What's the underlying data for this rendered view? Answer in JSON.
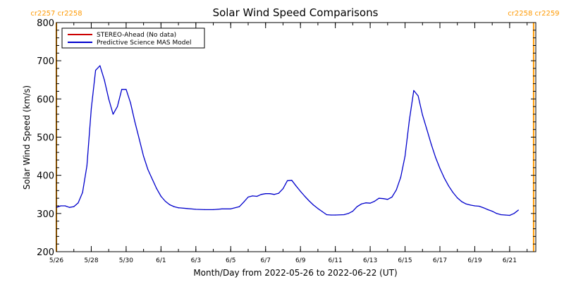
{
  "chart_data": {
    "type": "line",
    "title": "Solar Wind Speed Comparisons",
    "xlabel": "Month/Day from 2022-05-26 to 2022-06-22 (UT)",
    "ylabel": "Solar Wind Speed (km/s)",
    "ylim": [
      200,
      800
    ],
    "xlim": [
      "2022-05-26",
      "2022-06-22T12:00"
    ],
    "y_ticks": [
      200,
      300,
      400,
      500,
      600,
      700,
      800
    ],
    "x_tick_dates": [
      "2022-05-26",
      "2022-05-28",
      "2022-05-30",
      "2022-06-01",
      "2022-06-03",
      "2022-06-05",
      "2022-06-07",
      "2022-06-09",
      "2022-06-11",
      "2022-06-13",
      "2022-06-15",
      "2022-06-17",
      "2022-06-19",
      "2022-06-21"
    ],
    "x_tick_labels": [
      "5/26",
      "5/28",
      "5/30",
      "6/1",
      "6/3",
      "6/5",
      "6/7",
      "6/9",
      "6/11",
      "6/13",
      "6/15",
      "6/17",
      "6/19",
      "6/21"
    ],
    "rotation_markers": [
      {
        "date": "2022-05-26",
        "label": "cr2257 cr2258",
        "color": "#ff9900"
      },
      {
        "date": "2022-06-22T09:00",
        "label": "cr2258 cr2259",
        "color": "#ff9900"
      }
    ],
    "legend_position": "top-left",
    "series": [
      {
        "name": "STEREO-Ahead (No data)",
        "color": "#cc0000",
        "points": []
      },
      {
        "name": "Predictive Science MAS Model",
        "color": "#0000cc",
        "points": [
          [
            "2022-05-26T00:00",
            316
          ],
          [
            "2022-05-26T06:00",
            320
          ],
          [
            "2022-05-26T12:00",
            320
          ],
          [
            "2022-05-26T18:00",
            316
          ],
          [
            "2022-05-27T00:00",
            318
          ],
          [
            "2022-05-27T06:00",
            328
          ],
          [
            "2022-05-27T12:00",
            355
          ],
          [
            "2022-05-27T18:00",
            425
          ],
          [
            "2022-05-28T00:00",
            575
          ],
          [
            "2022-05-28T06:00",
            675
          ],
          [
            "2022-05-28T12:00",
            687
          ],
          [
            "2022-05-28T18:00",
            650
          ],
          [
            "2022-05-29T00:00",
            600
          ],
          [
            "2022-05-29T06:00",
            560
          ],
          [
            "2022-05-29T12:00",
            580
          ],
          [
            "2022-05-29T18:00",
            625
          ],
          [
            "2022-05-30T00:00",
            625
          ],
          [
            "2022-05-30T06:00",
            590
          ],
          [
            "2022-05-30T12:00",
            540
          ],
          [
            "2022-05-30T18:00",
            495
          ],
          [
            "2022-05-31T00:00",
            450
          ],
          [
            "2022-05-31T06:00",
            415
          ],
          [
            "2022-05-31T12:00",
            390
          ],
          [
            "2022-05-31T18:00",
            365
          ],
          [
            "2022-06-01T00:00",
            345
          ],
          [
            "2022-06-01T06:00",
            332
          ],
          [
            "2022-06-01T12:00",
            323
          ],
          [
            "2022-06-01T18:00",
            318
          ],
          [
            "2022-06-02T00:00",
            315
          ],
          [
            "2022-06-02T12:00",
            313
          ],
          [
            "2022-06-03T00:00",
            311
          ],
          [
            "2022-06-03T12:00",
            310
          ],
          [
            "2022-06-04T00:00",
            310
          ],
          [
            "2022-06-04T12:00",
            312
          ],
          [
            "2022-06-05T00:00",
            312
          ],
          [
            "2022-06-05T12:00",
            318
          ],
          [
            "2022-06-05T18:00",
            330
          ],
          [
            "2022-06-06T00:00",
            343
          ],
          [
            "2022-06-06T06:00",
            346
          ],
          [
            "2022-06-06T12:00",
            345
          ],
          [
            "2022-06-06T18:00",
            350
          ],
          [
            "2022-06-07T00:00",
            352
          ],
          [
            "2022-06-07T06:00",
            352
          ],
          [
            "2022-06-07T12:00",
            350
          ],
          [
            "2022-06-07T18:00",
            353
          ],
          [
            "2022-06-08T00:00",
            365
          ],
          [
            "2022-06-08T06:00",
            386
          ],
          [
            "2022-06-08T12:00",
            387
          ],
          [
            "2022-06-08T18:00",
            372
          ],
          [
            "2022-06-09T00:00",
            358
          ],
          [
            "2022-06-09T06:00",
            345
          ],
          [
            "2022-06-09T12:00",
            333
          ],
          [
            "2022-06-09T18:00",
            322
          ],
          [
            "2022-06-10T00:00",
            313
          ],
          [
            "2022-06-10T06:00",
            305
          ],
          [
            "2022-06-10T12:00",
            297
          ],
          [
            "2022-06-10T18:00",
            296
          ],
          [
            "2022-06-11T00:00",
            296
          ],
          [
            "2022-06-11T12:00",
            297
          ],
          [
            "2022-06-11T18:00",
            300
          ],
          [
            "2022-06-12T00:00",
            306
          ],
          [
            "2022-06-12T06:00",
            318
          ],
          [
            "2022-06-12T12:00",
            325
          ],
          [
            "2022-06-12T18:00",
            328
          ],
          [
            "2022-06-13T00:00",
            327
          ],
          [
            "2022-06-13T06:00",
            332
          ],
          [
            "2022-06-13T12:00",
            340
          ],
          [
            "2022-06-13T18:00",
            339
          ],
          [
            "2022-06-14T00:00",
            337
          ],
          [
            "2022-06-14T06:00",
            343
          ],
          [
            "2022-06-14T12:00",
            362
          ],
          [
            "2022-06-14T18:00",
            395
          ],
          [
            "2022-06-15T00:00",
            450
          ],
          [
            "2022-06-15T06:00",
            545
          ],
          [
            "2022-06-15T12:00",
            622
          ],
          [
            "2022-06-15T18:00",
            608
          ],
          [
            "2022-06-16T00:00",
            558
          ],
          [
            "2022-06-16T06:00",
            520
          ],
          [
            "2022-06-16T12:00",
            482
          ],
          [
            "2022-06-16T18:00",
            447
          ],
          [
            "2022-06-17T00:00",
            418
          ],
          [
            "2022-06-17T06:00",
            393
          ],
          [
            "2022-06-17T12:00",
            372
          ],
          [
            "2022-06-17T18:00",
            355
          ],
          [
            "2022-06-18T00:00",
            341
          ],
          [
            "2022-06-18T06:00",
            331
          ],
          [
            "2022-06-18T12:00",
            325
          ],
          [
            "2022-06-18T18:00",
            322
          ],
          [
            "2022-06-19T00:00",
            320
          ],
          [
            "2022-06-19T06:00",
            319
          ],
          [
            "2022-06-19T12:00",
            315
          ],
          [
            "2022-06-19T18:00",
            310
          ],
          [
            "2022-06-20T00:00",
            306
          ],
          [
            "2022-06-20T06:00",
            300
          ],
          [
            "2022-06-20T12:00",
            297
          ],
          [
            "2022-06-20T18:00",
            296
          ],
          [
            "2022-06-21T00:00",
            295
          ],
          [
            "2022-06-21T06:00",
            300
          ],
          [
            "2022-06-21T12:00",
            309
          ]
        ]
      }
    ]
  }
}
